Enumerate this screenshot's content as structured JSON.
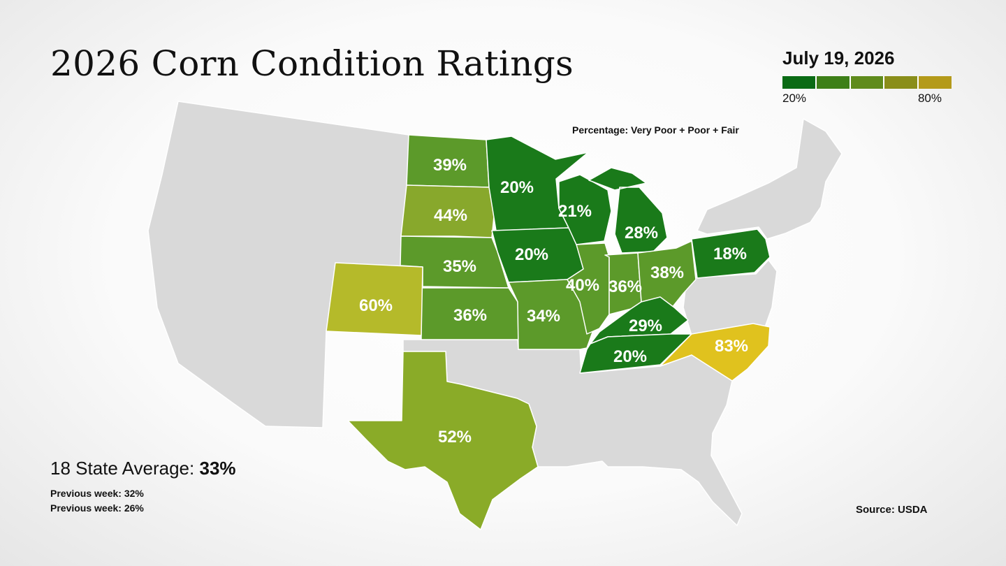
{
  "title": "2026 Corn Condition Ratings",
  "legend": {
    "date": "July 19, 2026",
    "min_label": "20%",
    "max_label": "80%",
    "colors": [
      "#0a6b14",
      "#3d7f18",
      "#5f8b1c",
      "#8a8e1a",
      "#b49a1a"
    ]
  },
  "metric_note": "Percentage: Very Poor + Poor + Fair",
  "colors": {
    "non_reporting": "#d9d9d9",
    "state_border": "#ffffff"
  },
  "states": [
    {
      "id": "ND",
      "label": "39%",
      "value": 39,
      "color": "#5c9a2a"
    },
    {
      "id": "SD",
      "label": "44%",
      "value": 44,
      "color": "#88a82c"
    },
    {
      "id": "NE",
      "label": "35%",
      "value": 35,
      "color": "#5c9a2a"
    },
    {
      "id": "KS",
      "label": "36%",
      "value": 36,
      "color": "#5c9a2a"
    },
    {
      "id": "CO",
      "label": "60%",
      "value": 60,
      "color": "#b5ba2a"
    },
    {
      "id": "TX",
      "label": "52%",
      "value": 52,
      "color": "#8aab28"
    },
    {
      "id": "MN",
      "label": "20%",
      "value": 20,
      "color": "#1a7a1a"
    },
    {
      "id": "IA",
      "label": "20%",
      "value": 20,
      "color": "#1a7a1a"
    },
    {
      "id": "WI",
      "label": "21%",
      "value": 21,
      "color": "#1a7a1a"
    },
    {
      "id": "MI",
      "label": "28%",
      "value": 28,
      "color": "#1a7a1a"
    },
    {
      "id": "MO",
      "label": "34%",
      "value": 34,
      "color": "#5c9a2a"
    },
    {
      "id": "IL",
      "label": "40%",
      "value": 40,
      "color": "#5c9a2a"
    },
    {
      "id": "IN",
      "label": "36%",
      "value": 36,
      "color": "#5c9a2a"
    },
    {
      "id": "OH",
      "label": "38%",
      "value": 38,
      "color": "#5c9a2a"
    },
    {
      "id": "KY",
      "label": "29%",
      "value": 29,
      "color": "#1a7a1a"
    },
    {
      "id": "TN",
      "label": "20%",
      "value": 20,
      "color": "#1a7a1a"
    },
    {
      "id": "PA",
      "label": "18%",
      "value": 18,
      "color": "#1a7a1a"
    },
    {
      "id": "NC",
      "label": "83%",
      "value": 83,
      "color": "#e0c21e"
    }
  ],
  "summary": {
    "average_label": "18 State Average:",
    "average_value": "33%",
    "previous_1": "Previous week: 32%",
    "previous_2": "Previous week: 26%"
  },
  "source": "Source: USDA"
}
